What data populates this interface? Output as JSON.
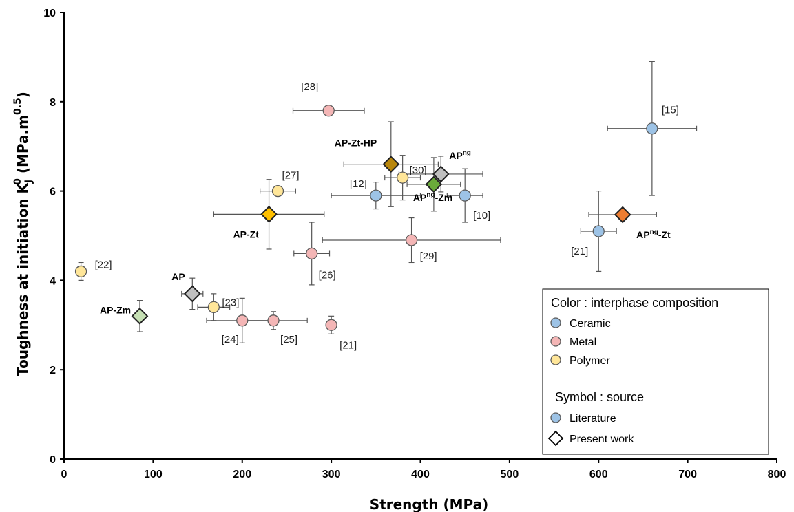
{
  "chart_data": {
    "type": "scatter",
    "xlabel": "Strength (MPa)",
    "ylabel_main": "Toughness at initiation K",
    "ylabel_sub": "J",
    "ylabel_sup": "0",
    "ylabel_units": " (MPa.m",
    "ylabel_units_sup": "0.5",
    "ylabel_close": ")",
    "xlim": [
      0,
      800
    ],
    "ylim": [
      0,
      10
    ],
    "xticks": [
      "0",
      "100",
      "200",
      "300",
      "400",
      "500",
      "600",
      "700",
      "800"
    ],
    "yticks": [
      "0",
      "2",
      "4",
      "6",
      "8",
      "10"
    ],
    "grid": false,
    "colors": {
      "ceramic": "#9dc3e6",
      "metal": "#f4b6b6",
      "polymer": "#ffe699",
      "marker_edge": "#5a5a5a",
      "errorbar": "#555555"
    },
    "literature": [
      {
        "label": "[28]",
        "category": "metal",
        "x": 297,
        "y": 7.8,
        "xerr": 40,
        "yerr": null
      },
      {
        "label": "[15]",
        "category": "ceramic",
        "x": 660,
        "y": 7.4,
        "xerr": 50,
        "yerr": 1.5
      },
      {
        "label": "[27]",
        "category": "polymer",
        "x": 240,
        "y": 6.0,
        "xerr": 20,
        "yerr": null
      },
      {
        "label": "[30]",
        "category": "polymer",
        "x": 380,
        "y": 6.3,
        "xerr": 20,
        "yerr": 0.5
      },
      {
        "label": "[12]",
        "category": "ceramic",
        "x": 350,
        "y": 5.9,
        "xerr": 50,
        "yerr": 0.3
      },
      {
        "label": "[10]",
        "category": "ceramic",
        "x": 450,
        "y": 5.9,
        "xerr": 20,
        "yerr": 0.6
      },
      {
        "label": "[21]",
        "category": "ceramic",
        "x": 600,
        "y": 5.1,
        "xerr": 20,
        "yerr": 0.9
      },
      {
        "label": "[29]",
        "category": "metal",
        "x": 390,
        "y": 4.9,
        "xerr": 100,
        "yerr": 0.5
      },
      {
        "label": "[26]",
        "category": "metal",
        "x": 278,
        "y": 4.6,
        "xerr": 20,
        "yerr": 0.7
      },
      {
        "label": "[22]",
        "category": "polymer",
        "x": 19,
        "y": 4.2,
        "xerr": null,
        "yerr": 0.2
      },
      {
        "label": "[23]",
        "category": "polymer",
        "x": 168,
        "y": 3.4,
        "xerr": 18,
        "yerr": 0.3
      },
      {
        "label": "[24]",
        "category": "metal",
        "x": 200,
        "y": 3.1,
        "xerr": 40,
        "yerr": 0.5
      },
      {
        "label": "[25]",
        "category": "metal",
        "x": 235,
        "y": 3.1,
        "xerr": 38,
        "yerr": 0.2
      },
      {
        "label": "[21]",
        "category": "metal",
        "x": 300,
        "y": 3.0,
        "xerr": null,
        "yerr": 0.2
      }
    ],
    "present_work": [
      {
        "label": "AP-Zt-HP",
        "fill": "#b8860b",
        "x": 367,
        "y": 6.6,
        "xerr": 53,
        "yerr": 0.95
      },
      {
        "label": "AP",
        "label_sup": "ng",
        "label_tail": "",
        "fill": "#bfbfbf",
        "x": 423,
        "y": 6.38,
        "xerr": 47,
        "yerr": 0.4
      },
      {
        "label": "AP",
        "label_sup": "ng",
        "label_tail": "-Zm",
        "fill": "#6aaa3a",
        "x": 415,
        "y": 6.15,
        "xerr": 30,
        "yerr": 0.6
      },
      {
        "label": "AP-Zt",
        "fill": "#ffc000",
        "x": 230,
        "y": 5.48,
        "xerr": 62,
        "yerr": 0.78
      },
      {
        "label": "AP",
        "label_sup": "ng",
        "label_tail": "-Zt",
        "fill": "#ed7d31",
        "x": 627,
        "y": 5.47,
        "xerr": 38,
        "yerr": null
      },
      {
        "label": "AP",
        "fill": "#bfbfbf",
        "x": 144,
        "y": 3.7,
        "xerr": 12,
        "yerr": 0.35
      },
      {
        "label": "AP-Zm",
        "fill": "#c6e0b4",
        "x": 85,
        "y": 3.2,
        "xerr": null,
        "yerr": 0.35
      }
    ],
    "legend": {
      "position": "bottom-right",
      "color_heading": "Color : interphase composition",
      "color_items": [
        {
          "label": "Ceramic",
          "category": "ceramic"
        },
        {
          "label": "Metal",
          "category": "metal"
        },
        {
          "label": "Polymer",
          "category": "polymer"
        }
      ],
      "symbol_heading": "Symbol : source",
      "symbol_items": [
        {
          "label": "Literature",
          "shape": "circle"
        },
        {
          "label": "Present work",
          "shape": "diamond"
        }
      ]
    }
  }
}
